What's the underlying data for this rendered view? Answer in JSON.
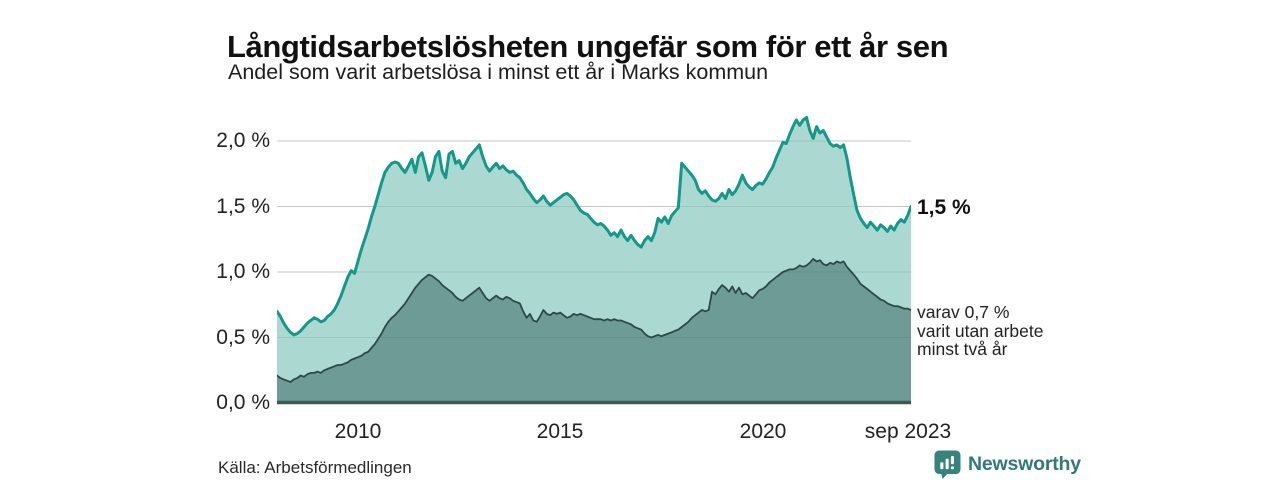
{
  "header": {
    "title": "Långtidsarbetslösheten ungefär som för ett år sen",
    "subtitle": "Andel som varit arbetslösa i minst ett år i Marks kommun"
  },
  "chart_data": {
    "type": "area",
    "title": "Långtidsarbetslösheten ungefär som för ett år sen",
    "subtitle": "Andel som varit arbetslösa i minst ett år i Marks kommun",
    "unit": "%",
    "frequency": "monthly",
    "x_start": "2008-01",
    "x_end": "2023-09",
    "ylim": [
      0,
      2.25
    ],
    "grid": "horizontal",
    "y_tick_labels": [
      "2,0 %",
      "1,5 %",
      "1,0 %",
      "0,5 %",
      "0,0 %"
    ],
    "y_tick_values": [
      2.0,
      1.5,
      1.0,
      0.5,
      0.0
    ],
    "x_tick_labels": [
      "2010",
      "2015",
      "2020",
      "sep 2023"
    ],
    "colors": {
      "total_fill": "#abd8d1",
      "total_line": "#12998a",
      "two_year_fill": "#6f9b96",
      "two_year_line": "#2b4946",
      "baseline": "#3e5a56",
      "gridline": "#d9d9d9"
    },
    "series": [
      {
        "name": "Arbetslösa minst ett år (andel)",
        "end_value_label": "1,5 %",
        "fill": "#abd8d1",
        "line": "#12998a",
        "width": 3,
        "values": [
          0.7,
          0.66,
          0.61,
          0.57,
          0.54,
          0.52,
          0.53,
          0.55,
          0.58,
          0.61,
          0.63,
          0.65,
          0.64,
          0.62,
          0.63,
          0.66,
          0.68,
          0.71,
          0.76,
          0.82,
          0.89,
          0.96,
          1.01,
          0.99,
          1.08,
          1.17,
          1.25,
          1.33,
          1.42,
          1.5,
          1.59,
          1.68,
          1.76,
          1.8,
          1.83,
          1.84,
          1.83,
          1.79,
          1.76,
          1.81,
          1.86,
          1.76,
          1.88,
          1.91,
          1.81,
          1.7,
          1.76,
          1.88,
          1.92,
          1.77,
          1.72,
          1.9,
          1.92,
          1.83,
          1.85,
          1.79,
          1.83,
          1.88,
          1.91,
          1.94,
          1.97,
          1.88,
          1.81,
          1.77,
          1.8,
          1.83,
          1.79,
          1.81,
          1.78,
          1.76,
          1.77,
          1.74,
          1.72,
          1.68,
          1.63,
          1.6,
          1.56,
          1.53,
          1.55,
          1.58,
          1.54,
          1.51,
          1.53,
          1.55,
          1.57,
          1.59,
          1.6,
          1.58,
          1.55,
          1.51,
          1.47,
          1.45,
          1.44,
          1.41,
          1.38,
          1.36,
          1.37,
          1.35,
          1.32,
          1.28,
          1.3,
          1.27,
          1.32,
          1.27,
          1.24,
          1.28,
          1.24,
          1.21,
          1.19,
          1.24,
          1.27,
          1.24,
          1.3,
          1.41,
          1.38,
          1.42,
          1.37,
          1.43,
          1.46,
          1.49,
          1.83,
          1.8,
          1.77,
          1.74,
          1.7,
          1.63,
          1.6,
          1.62,
          1.58,
          1.55,
          1.54,
          1.56,
          1.6,
          1.56,
          1.63,
          1.59,
          1.62,
          1.67,
          1.74,
          1.68,
          1.65,
          1.63,
          1.66,
          1.68,
          1.67,
          1.71,
          1.76,
          1.8,
          1.87,
          1.93,
          1.99,
          1.98,
          2.05,
          2.11,
          2.16,
          2.12,
          2.16,
          2.18,
          2.08,
          2.02,
          2.11,
          2.06,
          2.08,
          2.03,
          1.98,
          1.96,
          1.97,
          1.95,
          1.97,
          1.87,
          1.72,
          1.59,
          1.47,
          1.41,
          1.37,
          1.34,
          1.38,
          1.35,
          1.32,
          1.36,
          1.34,
          1.31,
          1.35,
          1.32,
          1.37,
          1.4,
          1.38,
          1.43,
          1.5
        ]
      },
      {
        "name": "varav utan arbete minst två år (andel)",
        "end_value_label": "varav 0,7 % varit utan arbete minst två år",
        "fill": "#6f9b96",
        "line": "#2b4946",
        "width": 1.8,
        "values": [
          0.21,
          0.19,
          0.18,
          0.17,
          0.16,
          0.18,
          0.19,
          0.21,
          0.2,
          0.22,
          0.23,
          0.23,
          0.24,
          0.23,
          0.25,
          0.26,
          0.27,
          0.28,
          0.29,
          0.29,
          0.3,
          0.31,
          0.33,
          0.34,
          0.35,
          0.36,
          0.38,
          0.39,
          0.42,
          0.45,
          0.49,
          0.53,
          0.58,
          0.62,
          0.65,
          0.67,
          0.7,
          0.73,
          0.76,
          0.8,
          0.84,
          0.88,
          0.91,
          0.94,
          0.96,
          0.98,
          0.97,
          0.95,
          0.93,
          0.9,
          0.88,
          0.86,
          0.84,
          0.81,
          0.79,
          0.78,
          0.8,
          0.82,
          0.84,
          0.86,
          0.88,
          0.84,
          0.8,
          0.78,
          0.8,
          0.82,
          0.8,
          0.79,
          0.81,
          0.8,
          0.78,
          0.77,
          0.76,
          0.7,
          0.65,
          0.68,
          0.63,
          0.62,
          0.66,
          0.71,
          0.68,
          0.67,
          0.69,
          0.68,
          0.69,
          0.67,
          0.65,
          0.66,
          0.68,
          0.67,
          0.68,
          0.67,
          0.66,
          0.65,
          0.64,
          0.64,
          0.64,
          0.63,
          0.64,
          0.63,
          0.64,
          0.63,
          0.63,
          0.62,
          0.61,
          0.6,
          0.58,
          0.57,
          0.56,
          0.53,
          0.51,
          0.5,
          0.51,
          0.52,
          0.51,
          0.52,
          0.53,
          0.54,
          0.55,
          0.56,
          0.58,
          0.6,
          0.62,
          0.65,
          0.67,
          0.69,
          0.71,
          0.7,
          0.71,
          0.85,
          0.83,
          0.87,
          0.9,
          0.88,
          0.85,
          0.89,
          0.84,
          0.88,
          0.83,
          0.84,
          0.82,
          0.8,
          0.83,
          0.86,
          0.87,
          0.89,
          0.92,
          0.94,
          0.96,
          0.98,
          1.0,
          1.01,
          1.02,
          1.02,
          1.03,
          1.05,
          1.04,
          1.05,
          1.07,
          1.1,
          1.08,
          1.09,
          1.06,
          1.05,
          1.07,
          1.06,
          1.08,
          1.07,
          1.08,
          1.04,
          1.01,
          0.98,
          0.95,
          0.91,
          0.89,
          0.87,
          0.85,
          0.83,
          0.81,
          0.79,
          0.78,
          0.76,
          0.75,
          0.74,
          0.74,
          0.73,
          0.72,
          0.72,
          0.71
        ]
      }
    ]
  },
  "annotations": {
    "total_end": "1,5 %",
    "two_year_lines": [
      "varav 0,7 %",
      "varit utan arbete",
      "minst två år"
    ]
  },
  "footer": {
    "source": "Källa: Arbetsförmedlingen",
    "brand": "Newsworthy",
    "brand_color": "#2e7c74"
  }
}
